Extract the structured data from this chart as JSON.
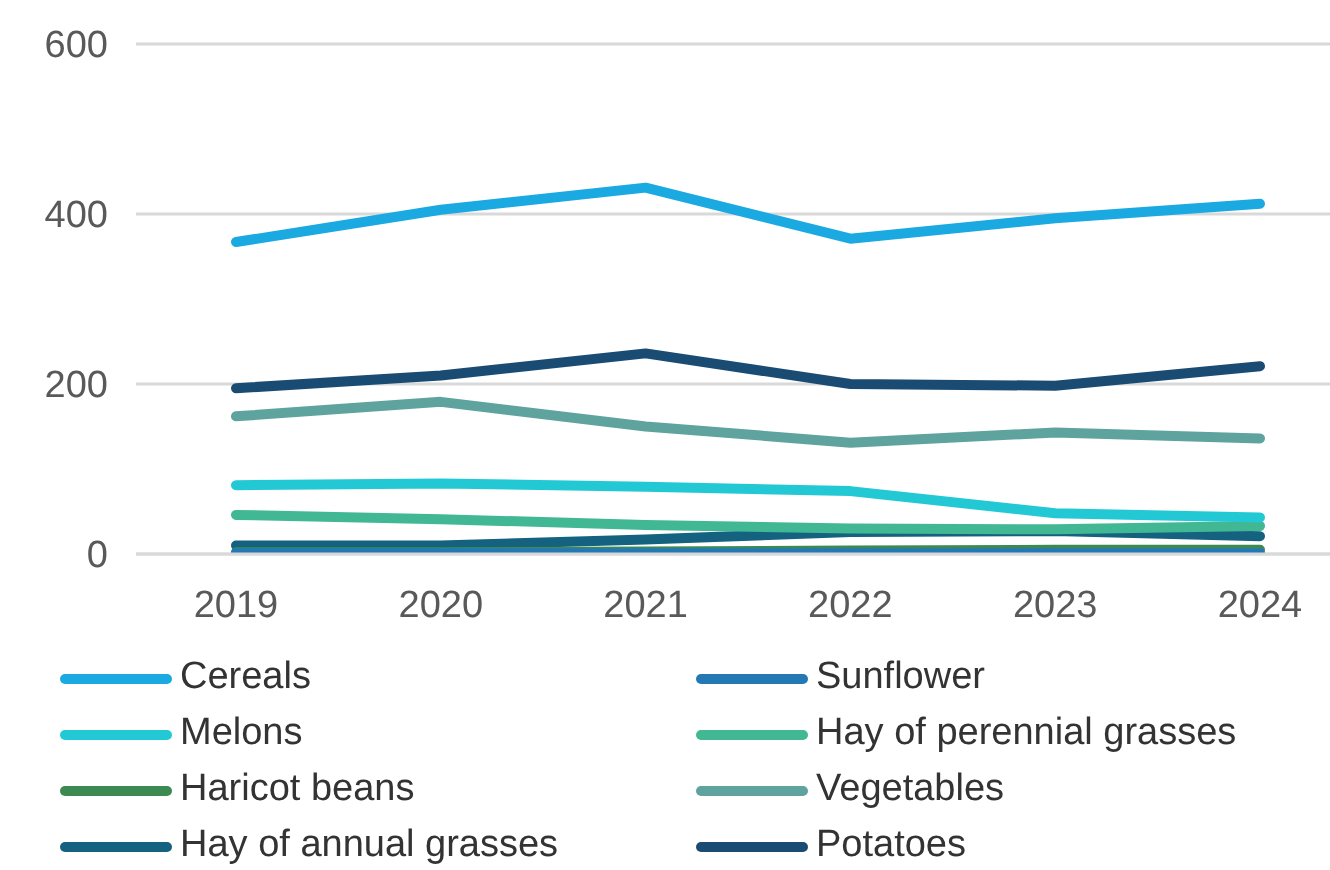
{
  "chart_data": {
    "type": "line",
    "categories": [
      "2019",
      "2020",
      "2021",
      "2022",
      "2023",
      "2024"
    ],
    "series": [
      {
        "name": "Cereals",
        "color": "#1ba9e2",
        "values": [
          367,
          405,
          431,
          371,
          395,
          412
        ]
      },
      {
        "name": "Sunflower",
        "color": "#2479b5",
        "values": [
          1,
          1,
          1,
          1,
          1,
          1
        ]
      },
      {
        "name": "Melons",
        "color": "#22c9d5",
        "values": [
          81,
          83,
          79,
          74,
          48,
          43
        ]
      },
      {
        "name": "Hay of perennial grasses",
        "color": "#41b893",
        "values": [
          46,
          41,
          34,
          30,
          29,
          33
        ]
      },
      {
        "name": "Haricot beans",
        "color": "#3c8a52",
        "values": [
          2,
          2,
          3,
          4,
          5,
          5
        ]
      },
      {
        "name": "Vegetables",
        "color": "#5ea39e",
        "values": [
          162,
          179,
          150,
          131,
          143,
          136
        ]
      },
      {
        "name": "Hay of annual grasses",
        "color": "#14627f",
        "values": [
          10,
          10,
          17,
          26,
          27,
          21
        ]
      },
      {
        "name": "Potatoes",
        "color": "#1a4b73",
        "values": [
          195,
          210,
          236,
          200,
          198,
          221
        ]
      }
    ],
    "ylim": [
      0,
      600
    ],
    "yticks": [
      0,
      200,
      400,
      600
    ],
    "grid": "y",
    "legend": "bottom",
    "marker": "none",
    "line_style": "solid"
  }
}
